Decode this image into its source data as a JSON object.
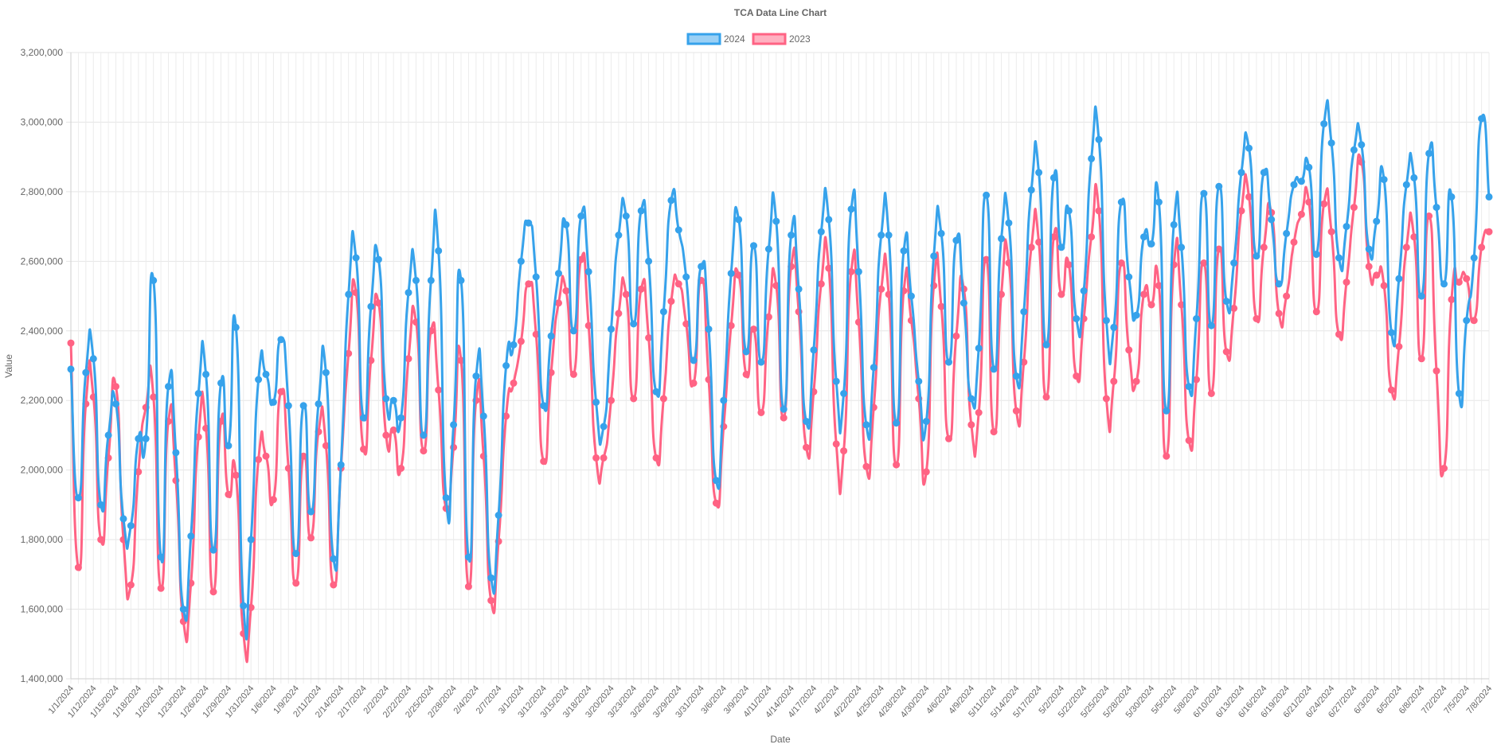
{
  "chart_data": {
    "type": "line",
    "title": "TCA Data Line Chart",
    "xlabel": "Date",
    "ylabel": "Value",
    "ylim": [
      1400000,
      3200000
    ],
    "ytick_step": 200000,
    "grid": true,
    "legend_position": "top",
    "x_tick_labels": [
      "1/1/2024",
      "1/12/2024",
      "1/15/2024",
      "1/18/2024",
      "1/20/2024",
      "1/23/2024",
      "1/26/2024",
      "1/29/2024",
      "1/31/2024",
      "1/6/2024",
      "1/9/2024",
      "2/11/2024",
      "2/14/2024",
      "2/17/2024",
      "2/2/2024",
      "2/22/2024",
      "2/25/2024",
      "2/28/2024",
      "2/4/2024",
      "2/7/2024",
      "3/1/2024",
      "3/12/2024",
      "3/15/2024",
      "3/18/2024",
      "3/20/2024",
      "3/23/2024",
      "3/26/2024",
      "3/29/2024",
      "3/31/2024",
      "3/6/2024",
      "3/9/2024",
      "4/11/2024",
      "4/14/2024",
      "4/17/2024",
      "4/2/2024",
      "4/22/2024",
      "4/25/2024",
      "4/28/2024",
      "4/30/2024",
      "4/6/2024",
      "4/9/2024",
      "5/11/2024",
      "5/14/2024",
      "5/17/2024",
      "5/2/2024",
      "5/22/2024",
      "5/25/2024",
      "5/28/2024",
      "5/30/2024",
      "5/5/2024",
      "5/8/2024",
      "6/10/2024",
      "6/13/2024",
      "6/16/2024",
      "6/19/2024",
      "6/21/2024",
      "6/24/2024",
      "6/27/2024",
      "6/3/2024",
      "6/5/2024",
      "6/8/2024",
      "7/2/2024",
      "7/5/2024",
      "7/8/2024"
    ],
    "series": [
      {
        "name": "2024",
        "color": "#36a2eb",
        "fill": "#9ad0f5",
        "values": [
          2290000,
          1920000,
          2280000,
          2320000,
          1900000,
          2100000,
          2190000,
          1860000,
          1840000,
          2090000,
          2090000,
          2545000,
          1750000,
          2240000,
          2050000,
          1600000,
          1810000,
          2220000,
          2275000,
          1770000,
          2250000,
          2070000,
          2410000,
          1610000,
          1800000,
          2260000,
          2275000,
          2195000,
          2375000,
          2185000,
          1760000,
          2185000,
          1880000,
          2190000,
          2280000,
          1745000,
          2015000,
          2505000,
          2610000,
          2150000,
          2470000,
          2605000,
          2205000,
          2200000,
          2150000,
          2510000,
          2545000,
          2100000,
          2545000,
          2630000,
          1920000,
          2130000,
          2545000,
          1750000,
          2270000,
          2155000,
          1690000,
          1870000,
          2300000,
          2360000,
          2600000,
          2710000,
          2555000,
          2185000,
          2385000,
          2565000,
          2705000,
          2400000,
          2730000,
          2570000,
          2195000,
          2125000,
          2405000,
          2675000,
          2730000,
          2420000,
          2745000,
          2600000,
          2225000,
          2455000,
          2775000,
          2690000,
          2555000,
          2315000,
          2585000,
          2405000,
          1970000,
          2200000,
          2565000,
          2720000,
          2340000,
          2645000,
          2310000,
          2635000,
          2715000,
          2175000,
          2675000,
          2520000,
          2140000,
          2345000,
          2685000,
          2720000,
          2255000,
          2220000,
          2750000,
          2570000,
          2130000,
          2295000,
          2675000,
          2675000,
          2135000,
          2630000,
          2500000,
          2255000,
          2140000,
          2615000,
          2680000,
          2310000,
          2660000,
          2480000,
          2205000,
          2350000,
          2790000,
          2290000,
          2665000,
          2710000,
          2270000,
          2455000,
          2805000,
          2855000,
          2360000,
          2840000,
          2640000,
          2745000,
          2435000,
          2515000,
          2895000,
          2950000,
          2430000,
          2410000,
          2770000,
          2555000,
          2445000,
          2670000,
          2650000,
          2770000,
          2170000,
          2705000,
          2640000,
          2240000,
          2435000,
          2795000,
          2415000,
          2815000,
          2485000,
          2595000,
          2855000,
          2925000,
          2615000,
          2855000,
          2720000,
          2535000,
          2680000,
          2820000,
          2830000,
          2870000,
          2620000,
          2995000,
          2940000,
          2610000,
          2700000,
          2920000,
          2935000,
          2635000,
          2715000,
          2835000,
          2395000,
          2550000,
          2820000,
          2840000,
          2500000,
          2910000,
          2755000,
          2535000,
          2785000,
          2220000,
          2430000,
          2610000,
          3010000,
          2785000
        ]
      },
      {
        "name": "2023",
        "color": "#ff6384",
        "fill": "#ffb1c1",
        "values": [
          2365000,
          1720000,
          2190000,
          2210000,
          1800000,
          2035000,
          2240000,
          1800000,
          1670000,
          1995000,
          2180000,
          2210000,
          1660000,
          2140000,
          1970000,
          1565000,
          1675000,
          2095000,
          2120000,
          1650000,
          2140000,
          1930000,
          1985000,
          1530000,
          1605000,
          2030000,
          2040000,
          1915000,
          2225000,
          2005000,
          1675000,
          2040000,
          1805000,
          2110000,
          2070000,
          1670000,
          2005000,
          2335000,
          2510000,
          2060000,
          2315000,
          2480000,
          2100000,
          2115000,
          2005000,
          2320000,
          2425000,
          2055000,
          2400000,
          2230000,
          1890000,
          2065000,
          2315000,
          1665000,
          2200000,
          2040000,
          1625000,
          1795000,
          2155000,
          2250000,
          2370000,
          2535000,
          2390000,
          2025000,
          2280000,
          2480000,
          2515000,
          2275000,
          2605000,
          2415000,
          2035000,
          2035000,
          2200000,
          2450000,
          2505000,
          2205000,
          2520000,
          2380000,
          2035000,
          2205000,
          2485000,
          2535000,
          2420000,
          2250000,
          2545000,
          2260000,
          1905000,
          2125000,
          2415000,
          2560000,
          2275000,
          2405000,
          2165000,
          2440000,
          2530000,
          2150000,
          2585000,
          2455000,
          2065000,
          2225000,
          2535000,
          2580000,
          2075000,
          2055000,
          2570000,
          2425000,
          2010000,
          2180000,
          2520000,
          2505000,
          2015000,
          2515000,
          2430000,
          2205000,
          1995000,
          2530000,
          2470000,
          2090000,
          2385000,
          2520000,
          2130000,
          2165000,
          2605000,
          2110000,
          2505000,
          2595000,
          2170000,
          2310000,
          2640000,
          2655000,
          2210000,
          2670000,
          2505000,
          2590000,
          2270000,
          2435000,
          2670000,
          2745000,
          2205000,
          2255000,
          2595000,
          2345000,
          2255000,
          2505000,
          2475000,
          2530000,
          2040000,
          2590000,
          2475000,
          2085000,
          2260000,
          2595000,
          2220000,
          2635000,
          2340000,
          2465000,
          2745000,
          2785000,
          2435000,
          2640000,
          2740000,
          2450000,
          2500000,
          2655000,
          2735000,
          2770000,
          2455000,
          2765000,
          2685000,
          2390000,
          2540000,
          2755000,
          2885000,
          2585000,
          2560000,
          2530000,
          2230000,
          2355000,
          2640000,
          2670000,
          2320000,
          2730000,
          2285000,
          2005000,
          2490000,
          2540000,
          2550000,
          2430000,
          2640000,
          2685000
        ]
      }
    ]
  }
}
